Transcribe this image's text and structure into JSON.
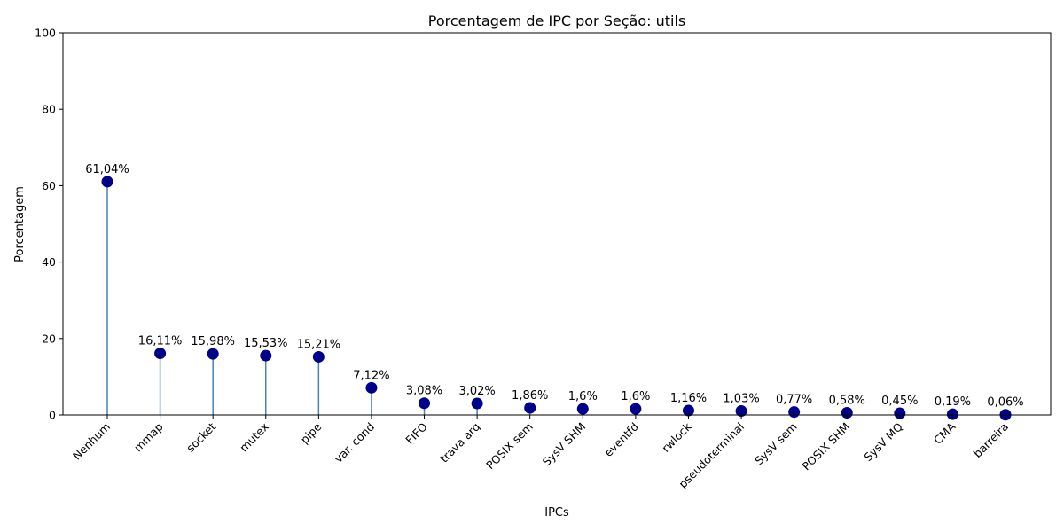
{
  "chart_data": {
    "type": "lollipop",
    "title": "Porcentagem de IPC por Seção: utils",
    "xlabel": "IPCs",
    "ylabel": "Porcentagem",
    "ylim": [
      0,
      100
    ],
    "yticks": [
      "0",
      "20",
      "40",
      "60",
      "80",
      "100"
    ],
    "categories": [
      "Nenhum",
      "mmap",
      "socket",
      "mutex",
      "pipe",
      "var. cond",
      "FIFO",
      "trava arq",
      "POSIX sem",
      "SysV SHM",
      "eventfd",
      "rwlock",
      "pseudoterminal",
      "SysV sem",
      "POSIX SHM",
      "SysV MQ",
      "CMA",
      "barreira"
    ],
    "values": [
      61.04,
      16.11,
      15.98,
      15.53,
      15.21,
      7.12,
      3.08,
      3.02,
      1.86,
      1.6,
      1.6,
      1.16,
      1.03,
      0.77,
      0.58,
      0.45,
      0.19,
      0.06
    ],
    "labels": [
      "61,04%",
      "16,11%",
      "15,98%",
      "15,53%",
      "15,21%",
      "7,12%",
      "3,08%",
      "3,02%",
      "1,86%",
      "1,6%",
      "1,6%",
      "1,16%",
      "1,03%",
      "0,77%",
      "0,58%",
      "0,45%",
      "0,19%",
      "0,06%"
    ],
    "marker_color": "#00008b",
    "stem_color": "#4682b4",
    "grid": false
  }
}
